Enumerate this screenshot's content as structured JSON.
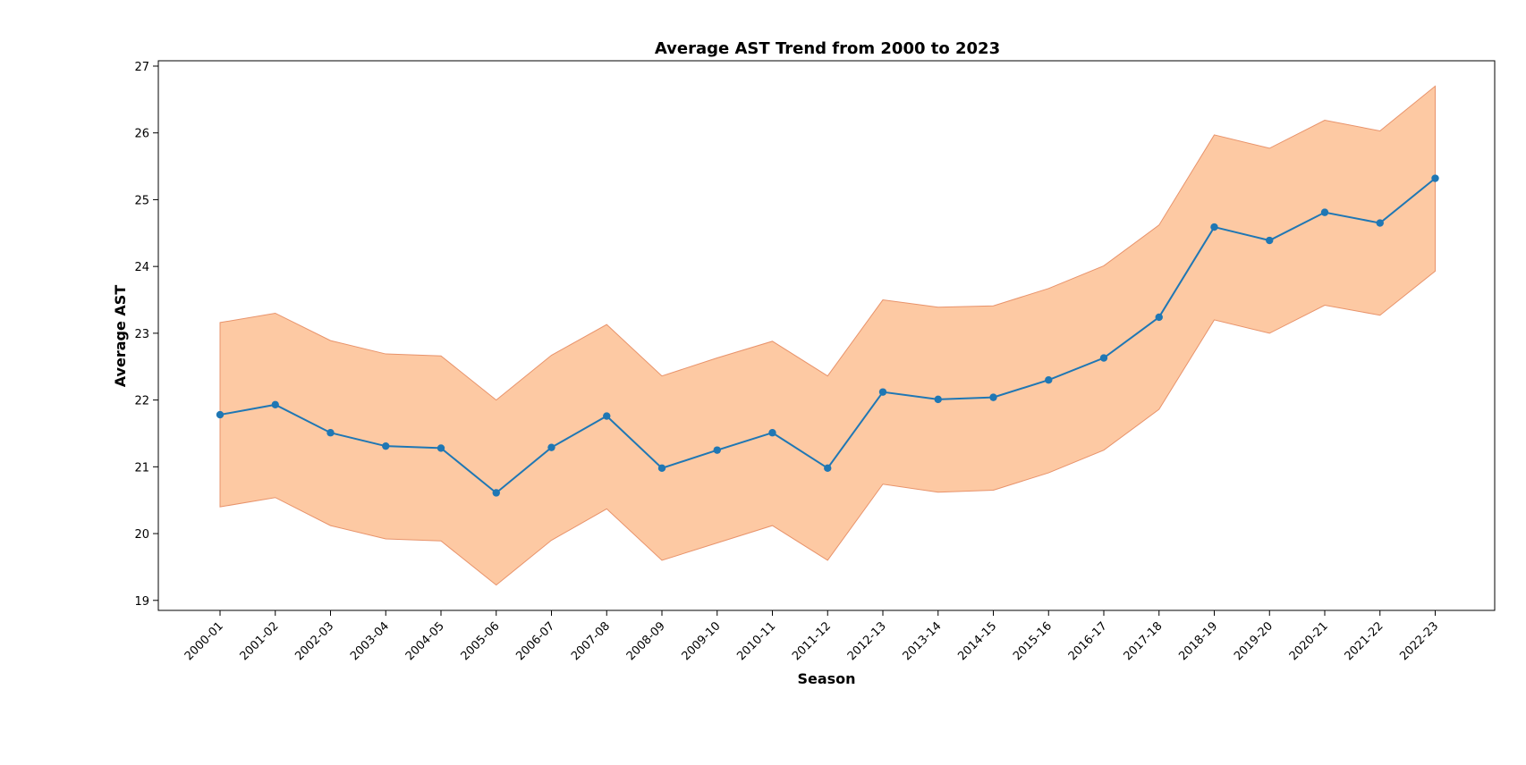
{
  "chart_data": {
    "type": "line",
    "title": "Average AST Trend from 2000 to 2023",
    "xlabel": "Season",
    "ylabel": "Average AST",
    "ylim": [
      18.85,
      27.08
    ],
    "yticks": [
      19,
      20,
      21,
      22,
      23,
      24,
      25,
      26,
      27
    ],
    "grid": false,
    "categories": [
      "2000-01",
      "2001-02",
      "2002-03",
      "2003-04",
      "2004-05",
      "2005-06",
      "2006-07",
      "2007-08",
      "2008-09",
      "2009-10",
      "2010-11",
      "2011-12",
      "2012-13",
      "2013-14",
      "2014-15",
      "2015-16",
      "2016-17",
      "2017-18",
      "2018-19",
      "2019-20",
      "2020-21",
      "2021-22",
      "2022-23"
    ],
    "series": [
      {
        "values": [
          21.78,
          21.93,
          21.51,
          21.31,
          21.28,
          20.61,
          21.29,
          21.76,
          20.98,
          21.25,
          21.51,
          20.98,
          22.12,
          22.01,
          22.04,
          22.3,
          22.63,
          23.24,
          24.59,
          24.39,
          24.81,
          24.65,
          25.32
        ],
        "band_upper": [
          23.16,
          23.3,
          22.89,
          22.69,
          22.66,
          22.0,
          22.67,
          23.13,
          22.36,
          22.63,
          22.88,
          22.36,
          23.5,
          23.39,
          23.41,
          23.67,
          24.01,
          24.62,
          25.97,
          25.77,
          26.19,
          26.03,
          26.7
        ],
        "band_lower": [
          20.4,
          20.54,
          20.12,
          19.92,
          19.89,
          19.23,
          19.9,
          20.37,
          19.6,
          19.86,
          20.12,
          19.6,
          20.74,
          20.62,
          20.65,
          20.91,
          21.25,
          21.86,
          23.2,
          23.0,
          23.42,
          23.27,
          23.93
        ]
      }
    ],
    "colors": {
      "line": "#1f77b4",
      "band_fill": "#fdc9a3",
      "band_edge": "#e8936b"
    }
  }
}
